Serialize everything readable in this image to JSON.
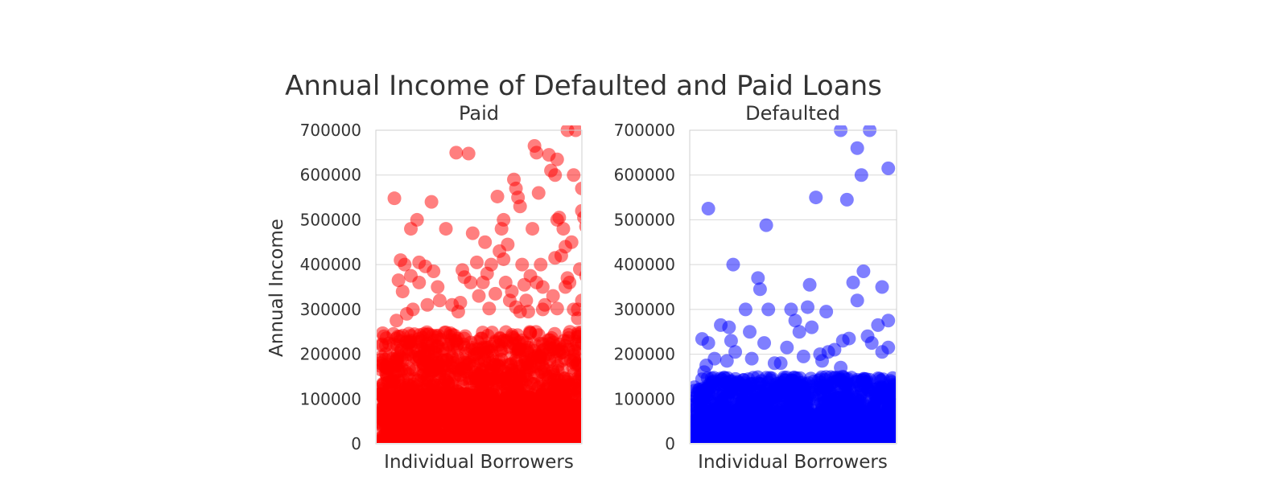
{
  "figure": {
    "title": "Annual Income of Defaulted and Paid Loans"
  },
  "chart_data": [
    {
      "type": "scatter",
      "title": "Paid",
      "xlabel": "Individual Borrowers",
      "ylabel": "Annual Income",
      "ylim": [
        0,
        700000
      ],
      "yticks": [
        "0",
        "100000",
        "200000",
        "300000",
        "400000",
        "500000",
        "600000",
        "700000"
      ],
      "grid": true,
      "color": "#ff0000",
      "marker_alpha": 0.5,
      "dense_band_max": 250000,
      "points": [
        [
          0.09,
          548000
        ],
        [
          0.11,
          365000
        ],
        [
          0.12,
          410000
        ],
        [
          0.13,
          340000
        ],
        [
          0.14,
          400000
        ],
        [
          0.17,
          480000
        ],
        [
          0.17,
          375000
        ],
        [
          0.2,
          500000
        ],
        [
          0.21,
          405000
        ],
        [
          0.21,
          360000
        ],
        [
          0.24,
          396000
        ],
        [
          0.27,
          540000
        ],
        [
          0.28,
          385000
        ],
        [
          0.3,
          350000
        ],
        [
          0.34,
          480000
        ],
        [
          0.31,
          320000
        ],
        [
          0.39,
          650000
        ],
        [
          0.41,
          315000
        ],
        [
          0.45,
          648000
        ],
        [
          0.42,
          388000
        ],
        [
          0.43,
          372000
        ],
        [
          0.47,
          470000
        ],
        [
          0.46,
          360000
        ],
        [
          0.49,
          405000
        ],
        [
          0.53,
          450000
        ],
        [
          0.52,
          360000
        ],
        [
          0.54,
          380000
        ],
        [
          0.56,
          400000
        ],
        [
          0.59,
          552000
        ],
        [
          0.58,
          335000
        ],
        [
          0.6,
          430000
        ],
        [
          0.61,
          480000
        ],
        [
          0.62,
          500000
        ],
        [
          0.62,
          412000
        ],
        [
          0.64,
          445000
        ],
        [
          0.65,
          320000
        ],
        [
          0.66,
          340000
        ],
        [
          0.67,
          590000
        ],
        [
          0.68,
          570000
        ],
        [
          0.69,
          550000
        ],
        [
          0.7,
          530000
        ],
        [
          0.71,
          400000
        ],
        [
          0.72,
          355000
        ],
        [
          0.73,
          320000
        ],
        [
          0.75,
          375000
        ],
        [
          0.76,
          480000
        ],
        [
          0.77,
          665000
        ],
        [
          0.78,
          650000
        ],
        [
          0.79,
          560000
        ],
        [
          0.78,
          360000
        ],
        [
          0.8,
          400000
        ],
        [
          0.81,
          350000
        ],
        [
          0.81,
          300000
        ],
        [
          0.74,
          295000
        ],
        [
          0.84,
          645000
        ],
        [
          0.85,
          610000
        ],
        [
          0.87,
          600000
        ],
        [
          0.88,
          500000
        ],
        [
          0.88,
          635000
        ],
        [
          0.87,
          415000
        ],
        [
          0.86,
          330000
        ],
        [
          0.89,
          505000
        ],
        [
          0.91,
          480000
        ],
        [
          0.9,
          420000
        ],
        [
          0.92,
          440000
        ],
        [
          0.93,
          370000
        ],
        [
          0.94,
          360000
        ],
        [
          0.95,
          450000
        ],
        [
          0.96,
          600000
        ],
        [
          0.97,
          700000
        ],
        [
          0.99,
          390000
        ],
        [
          0.98,
          300000
        ],
        [
          1.0,
          570000
        ],
        [
          1.0,
          520000
        ],
        [
          1.01,
          505000
        ],
        [
          1.02,
          485000
        ],
        [
          1.02,
          375000
        ],
        [
          1.0,
          320000
        ],
        [
          0.96,
          300000
        ],
        [
          0.93,
          700000
        ],
        [
          0.37,
          310000
        ],
        [
          0.55,
          302000
        ],
        [
          0.68,
          305000
        ],
        [
          0.82,
          310000
        ],
        [
          0.18,
          300000
        ],
        [
          0.25,
          310000
        ],
        [
          0.88,
          302000
        ],
        [
          0.5,
          330000
        ],
        [
          0.63,
          360000
        ],
        [
          0.92,
          350000
        ],
        [
          0.15,
          290000
        ],
        [
          0.4,
          295000
        ],
        [
          0.7,
          295000
        ],
        [
          0.98,
          280000
        ],
        [
          0.1,
          275000
        ]
      ]
    },
    {
      "type": "scatter",
      "title": "Defaulted",
      "xlabel": "Individual Borrowers",
      "ylim": [
        0,
        700000
      ],
      "yticks": [
        "0",
        "100000",
        "200000",
        "300000",
        "400000",
        "500000",
        "600000",
        "700000"
      ],
      "grid": true,
      "color": "#0000ff",
      "marker_alpha": 0.5,
      "dense_band_max": 150000,
      "points": [
        [
          0.09,
          525000
        ],
        [
          0.06,
          234000
        ],
        [
          0.09,
          225000
        ],
        [
          0.07,
          160000
        ],
        [
          0.08,
          175000
        ],
        [
          0.15,
          265000
        ],
        [
          0.2,
          230000
        ],
        [
          0.21,
          400000
        ],
        [
          0.19,
          260000
        ],
        [
          0.22,
          205000
        ],
        [
          0.27,
          300000
        ],
        [
          0.29,
          250000
        ],
        [
          0.33,
          370000
        ],
        [
          0.34,
          345000
        ],
        [
          0.36,
          225000
        ],
        [
          0.38,
          300000
        ],
        [
          0.37,
          488000
        ],
        [
          0.41,
          180000
        ],
        [
          0.47,
          215000
        ],
        [
          0.49,
          300000
        ],
        [
          0.51,
          275000
        ],
        [
          0.53,
          250000
        ],
        [
          0.57,
          305000
        ],
        [
          0.58,
          355000
        ],
        [
          0.59,
          260000
        ],
        [
          0.61,
          550000
        ],
        [
          0.63,
          200000
        ],
        [
          0.66,
          295000
        ],
        [
          0.7,
          210000
        ],
        [
          0.73,
          700000
        ],
        [
          0.73,
          170000
        ],
        [
          0.76,
          545000
        ],
        [
          0.77,
          235000
        ],
        [
          0.79,
          360000
        ],
        [
          0.81,
          320000
        ],
        [
          0.81,
          660000
        ],
        [
          0.83,
          600000
        ],
        [
          0.84,
          385000
        ],
        [
          0.86,
          240000
        ],
        [
          0.87,
          700000
        ],
        [
          0.88,
          225000
        ],
        [
          0.91,
          265000
        ],
        [
          0.93,
          350000
        ],
        [
          0.93,
          205000
        ],
        [
          0.96,
          615000
        ],
        [
          0.96,
          275000
        ],
        [
          0.96,
          215000
        ],
        [
          0.74,
          230000
        ],
        [
          0.67,
          205000
        ],
        [
          0.55,
          195000
        ],
        [
          0.44,
          180000
        ],
        [
          0.3,
          190000
        ],
        [
          0.12,
          190000
        ],
        [
          0.18,
          185000
        ],
        [
          0.64,
          185000
        ]
      ]
    }
  ]
}
